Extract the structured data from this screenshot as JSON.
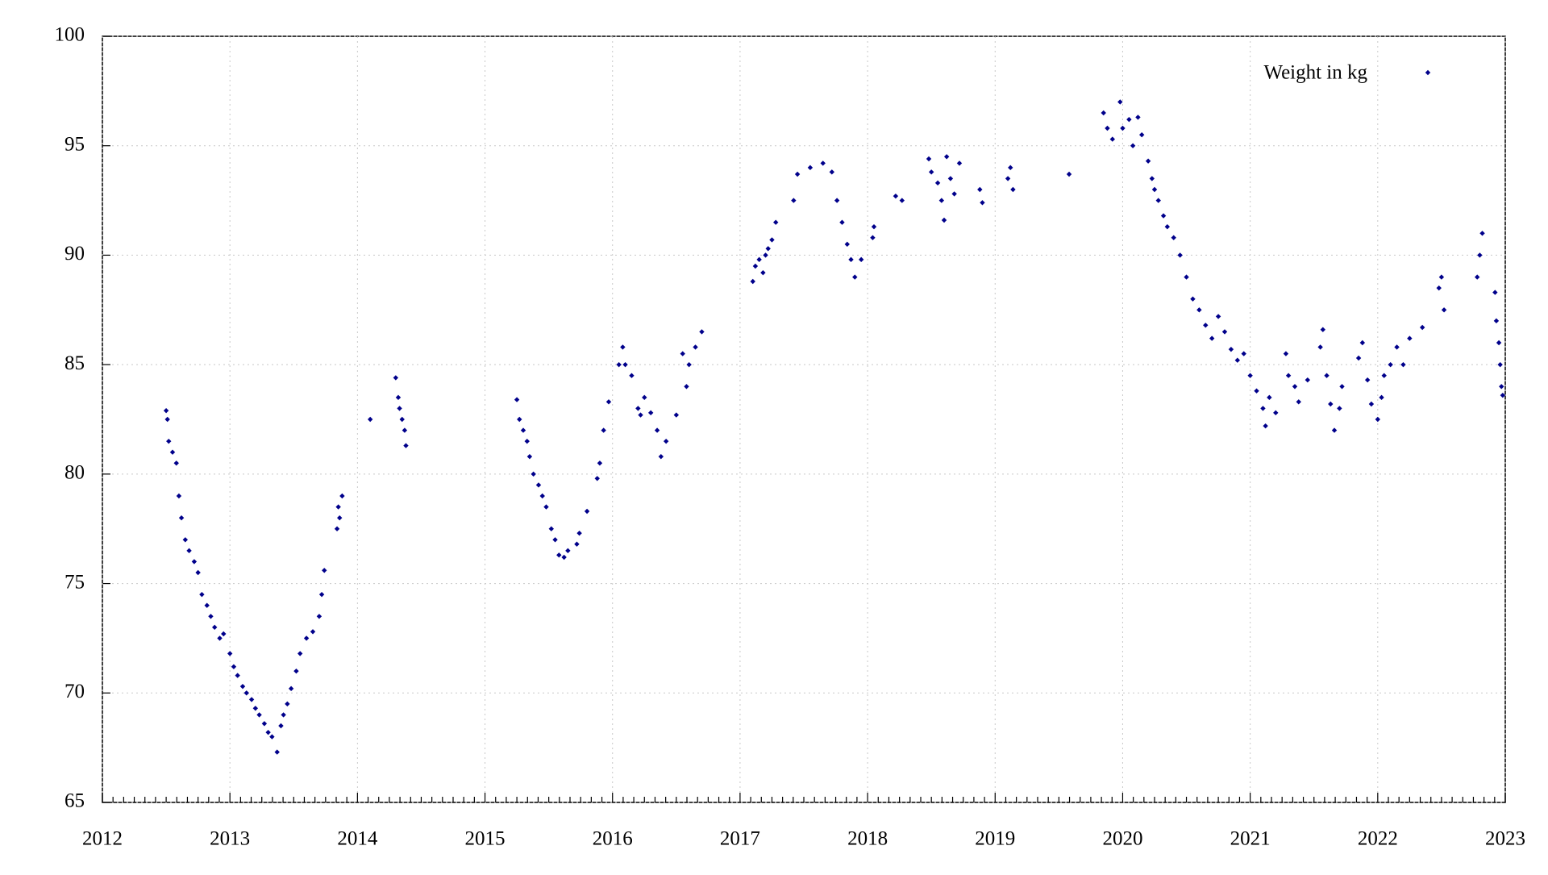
{
  "chart_data": {
    "type": "scatter",
    "series": [
      {
        "name": "Weight in kg",
        "color": "#00008b",
        "x": [
          2012.5,
          2012.51,
          2012.52,
          2012.55,
          2012.58,
          2012.6,
          2012.62,
          2012.65,
          2012.68,
          2012.72,
          2012.75,
          2012.78,
          2012.82,
          2012.85,
          2012.88,
          2012.92,
          2012.95,
          2013.0,
          2013.03,
          2013.06,
          2013.1,
          2013.13,
          2013.17,
          2013.2,
          2013.23,
          2013.27,
          2013.3,
          2013.33,
          2013.37,
          2013.4,
          2013.42,
          2013.45,
          2013.48,
          2013.52,
          2013.55,
          2013.6,
          2013.65,
          2013.7,
          2013.72,
          2013.74,
          2013.84,
          2013.85,
          2013.86,
          2013.88,
          2014.1,
          2014.3,
          2014.32,
          2014.33,
          2014.35,
          2014.37,
          2014.38,
          2015.25,
          2015.27,
          2015.3,
          2015.33,
          2015.35,
          2015.38,
          2015.42,
          2015.45,
          2015.48,
          2015.52,
          2015.55,
          2015.58,
          2015.62,
          2015.65,
          2015.72,
          2015.74,
          2015.8,
          2015.88,
          2015.9,
          2015.93,
          2015.97,
          2016.05,
          2016.08,
          2016.1,
          2016.15,
          2016.2,
          2016.22,
          2016.25,
          2016.3,
          2016.35,
          2016.38,
          2016.42,
          2016.5,
          2016.55,
          2016.58,
          2016.6,
          2016.65,
          2016.7,
          2017.1,
          2017.12,
          2017.15,
          2017.18,
          2017.2,
          2017.22,
          2017.25,
          2017.28,
          2017.42,
          2017.45,
          2017.55,
          2017.65,
          2017.72,
          2017.76,
          2017.8,
          2017.84,
          2017.87,
          2017.9,
          2017.95,
          2018.04,
          2018.05,
          2018.22,
          2018.27,
          2018.48,
          2018.5,
          2018.55,
          2018.58,
          2018.6,
          2018.62,
          2018.65,
          2018.68,
          2018.72,
          2018.88,
          2018.9,
          2019.1,
          2019.12,
          2019.14,
          2019.58,
          2019.85,
          2019.88,
          2019.92,
          2019.98,
          2020.0,
          2020.05,
          2020.08,
          2020.12,
          2020.15,
          2020.2,
          2020.23,
          2020.25,
          2020.28,
          2020.32,
          2020.35,
          2020.4,
          2020.45,
          2020.5,
          2020.55,
          2020.6,
          2020.65,
          2020.7,
          2020.75,
          2020.8,
          2020.85,
          2020.9,
          2020.95,
          2021.0,
          2021.05,
          2021.1,
          2021.12,
          2021.15,
          2021.2,
          2021.28,
          2021.3,
          2021.35,
          2021.38,
          2021.45,
          2021.55,
          2021.57,
          2021.6,
          2021.63,
          2021.66,
          2021.7,
          2021.72,
          2021.85,
          2021.88,
          2021.92,
          2021.95,
          2022.0,
          2022.03,
          2022.05,
          2022.1,
          2022.15,
          2022.2,
          2022.25,
          2022.35,
          2022.48,
          2022.5,
          2022.52,
          2022.78,
          2022.8,
          2022.82,
          2022.92,
          2022.93,
          2022.95,
          2022.96,
          2022.97,
          2022.98
        ],
        "values": [
          82.9,
          82.5,
          81.5,
          81,
          80.5,
          79,
          78,
          77,
          76.5,
          76,
          75.5,
          74.5,
          74,
          73.5,
          73,
          72.5,
          72.7,
          71.8,
          71.2,
          70.8,
          70.3,
          70,
          69.7,
          69.3,
          69,
          68.6,
          68.2,
          68,
          67.3,
          68.5,
          69,
          69.5,
          70.2,
          71,
          71.8,
          72.5,
          72.8,
          73.5,
          74.5,
          75.6,
          77.5,
          78.5,
          78,
          79,
          82.5,
          84.4,
          83.5,
          83,
          82.5,
          82,
          81.3,
          83.4,
          82.5,
          82,
          81.5,
          80.8,
          80,
          79.5,
          79,
          78.5,
          77.5,
          77,
          76.3,
          76.2,
          76.5,
          76.8,
          77.3,
          78.3,
          79.8,
          80.5,
          82,
          83.3,
          85,
          85.8,
          85,
          84.5,
          83,
          82.7,
          83.5,
          82.8,
          82,
          80.8,
          81.5,
          82.7,
          85.5,
          84,
          85,
          85.8,
          86.5,
          88.8,
          89.5,
          89.8,
          89.2,
          90,
          90.3,
          90.7,
          91.5,
          92.5,
          93.7,
          94,
          94.2,
          93.8,
          92.5,
          91.5,
          90.5,
          89.8,
          89,
          89.8,
          90.8,
          91.3,
          92.7,
          92.5,
          94.4,
          93.8,
          93.3,
          92.5,
          91.6,
          94.5,
          93.5,
          92.8,
          94.2,
          93,
          92.4,
          93.5,
          94,
          93,
          93.7,
          96.5,
          95.8,
          95.3,
          97,
          95.8,
          96.2,
          95,
          96.3,
          95.5,
          94.3,
          93.5,
          93,
          92.5,
          91.8,
          91.3,
          90.8,
          90,
          89,
          88,
          87.5,
          86.8,
          86.2,
          87.2,
          86.5,
          85.7,
          85.2,
          85.5,
          84.5,
          83.8,
          83,
          82.2,
          83.5,
          82.8,
          85.5,
          84.5,
          84,
          83.3,
          84.3,
          85.8,
          86.6,
          84.5,
          83.2,
          82,
          83,
          84,
          85.3,
          86,
          84.3,
          83.2,
          82.5,
          83.5,
          84.5,
          85,
          85.8,
          85,
          86.2,
          86.7,
          88.5,
          89,
          87.5,
          89,
          90,
          91,
          88.3,
          87,
          86,
          85,
          84,
          83.6
        ]
      }
    ],
    "xlim": [
      2012,
      2023
    ],
    "xticks": [
      2012,
      2013,
      2014,
      2015,
      2016,
      2017,
      2018,
      2019,
      2020,
      2021,
      2022,
      2023
    ],
    "ylim": [
      65,
      100
    ],
    "yticks": [
      65,
      70,
      75,
      80,
      85,
      90,
      95,
      100
    ],
    "grid": true,
    "legend": "upper right"
  }
}
